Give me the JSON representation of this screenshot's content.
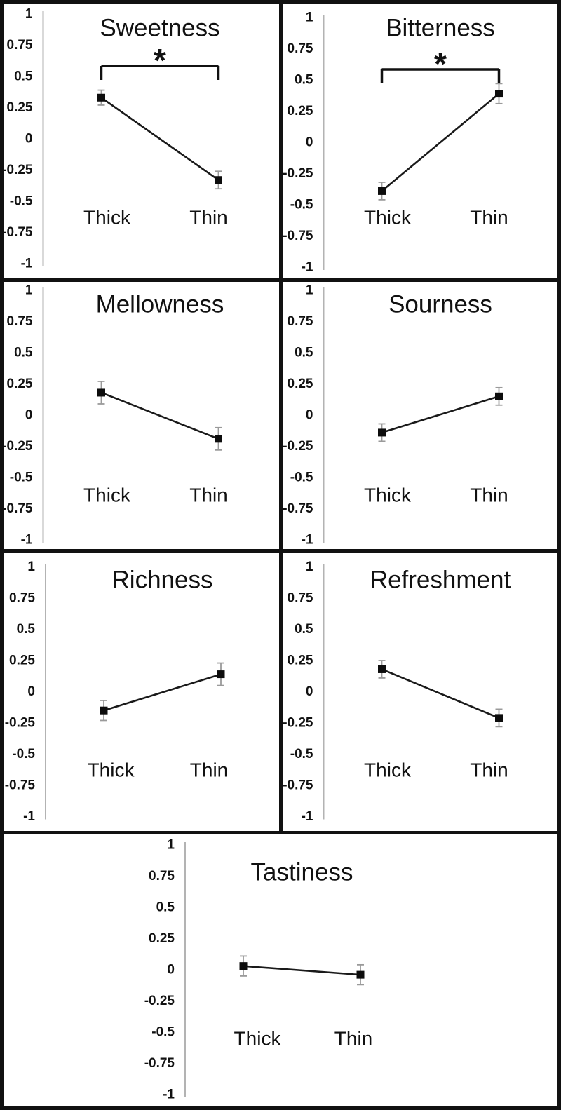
{
  "figure": {
    "y_tick_labels": [
      "1",
      "0.75",
      "0.5",
      "0.25",
      "0",
      "-0.25",
      "-0.5",
      "-0.75",
      "-1"
    ],
    "y_tick_values": [
      1,
      0.75,
      0.5,
      0.25,
      0,
      -0.25,
      -0.5,
      -0.75,
      -1
    ],
    "conditions": [
      "Thick",
      "Thin"
    ],
    "colors": {
      "ink": "#111111",
      "marker": "#0d0d0d",
      "data_line": "#1a1a1a",
      "error_bar": "#9a9a9a",
      "axis_line": "#b3b3b3",
      "border": "#111111",
      "background": "#ffffff"
    }
  },
  "chart_data": [
    {
      "type": "line",
      "title": "Sweetness",
      "categories": [
        "Thick",
        "Thin"
      ],
      "values": [
        0.33,
        -0.33
      ],
      "errors": [
        0.06,
        0.07
      ],
      "significant": true,
      "sig_label": "*",
      "ylim": [
        -1,
        1
      ]
    },
    {
      "type": "line",
      "title": "Bitterness",
      "categories": [
        "Thick",
        "Thin"
      ],
      "values": [
        -0.39,
        0.39
      ],
      "errors": [
        0.07,
        0.08
      ],
      "significant": true,
      "sig_label": "*",
      "ylim": [
        -1,
        1
      ]
    },
    {
      "type": "line",
      "title": "Mellowness",
      "categories": [
        "Thick",
        "Thin"
      ],
      "values": [
        0.18,
        -0.19
      ],
      "errors": [
        0.09,
        0.09
      ],
      "significant": false,
      "ylim": [
        -1,
        1
      ]
    },
    {
      "type": "line",
      "title": "Sourness",
      "categories": [
        "Thick",
        "Thin"
      ],
      "values": [
        -0.14,
        0.15
      ],
      "errors": [
        0.07,
        0.07
      ],
      "significant": false,
      "ylim": [
        -1,
        1
      ]
    },
    {
      "type": "line",
      "title": "Richness",
      "categories": [
        "Thick",
        "Thin"
      ],
      "values": [
        -0.15,
        0.14
      ],
      "errors": [
        0.08,
        0.09
      ],
      "significant": false,
      "ylim": [
        -1,
        1
      ]
    },
    {
      "type": "line",
      "title": "Refreshment",
      "categories": [
        "Thick",
        "Thin"
      ],
      "values": [
        0.18,
        -0.21
      ],
      "errors": [
        0.07,
        0.07
      ],
      "significant": false,
      "ylim": [
        -1,
        1
      ]
    },
    {
      "type": "line",
      "title": "Tastiness",
      "categories": [
        "Thick",
        "Thin"
      ],
      "values": [
        0.03,
        -0.04
      ],
      "errors": [
        0.08,
        0.08
      ],
      "significant": false,
      "ylim": [
        -1,
        1
      ]
    }
  ]
}
